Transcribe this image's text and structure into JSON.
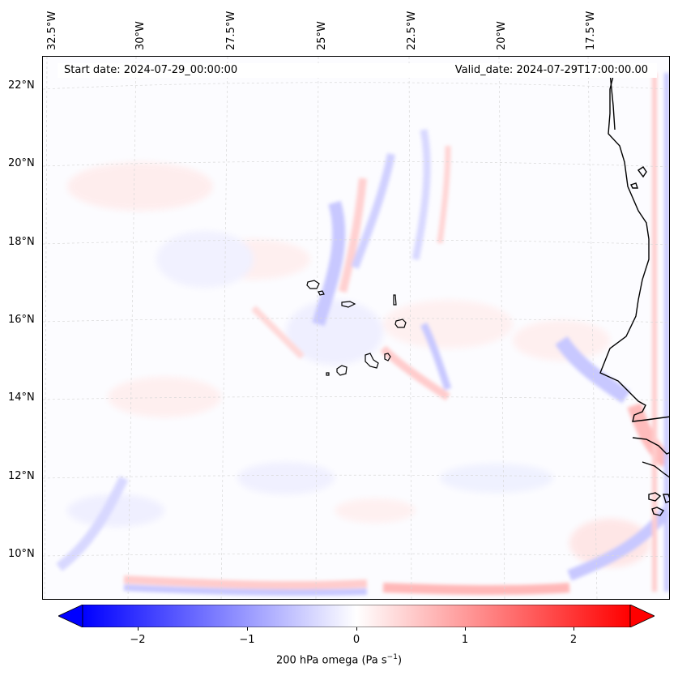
{
  "map": {
    "start_date": "Start date: 2024-07-29_00:00:00",
    "valid_date": "Valid_date: 2024-07-29T17:00:00.00",
    "longitude_labels": [
      "32.5°W",
      "30°W",
      "27.5°W",
      "25°W",
      "22.5°W",
      "20°W",
      "17.5°W"
    ],
    "latitude_labels": [
      "22°N",
      "20°N",
      "18°N",
      "16°N",
      "14°N",
      "12°N",
      "10°N"
    ]
  },
  "colorbar": {
    "ticks": [
      "−2",
      "−1",
      "0",
      "1",
      "2"
    ],
    "label_main": "200 hPa omega (Pa s",
    "label_sup": "−1",
    "label_close": ")",
    "min_color": "#0000ff",
    "mid_color": "#ffffff",
    "max_color": "#ff0000"
  }
}
